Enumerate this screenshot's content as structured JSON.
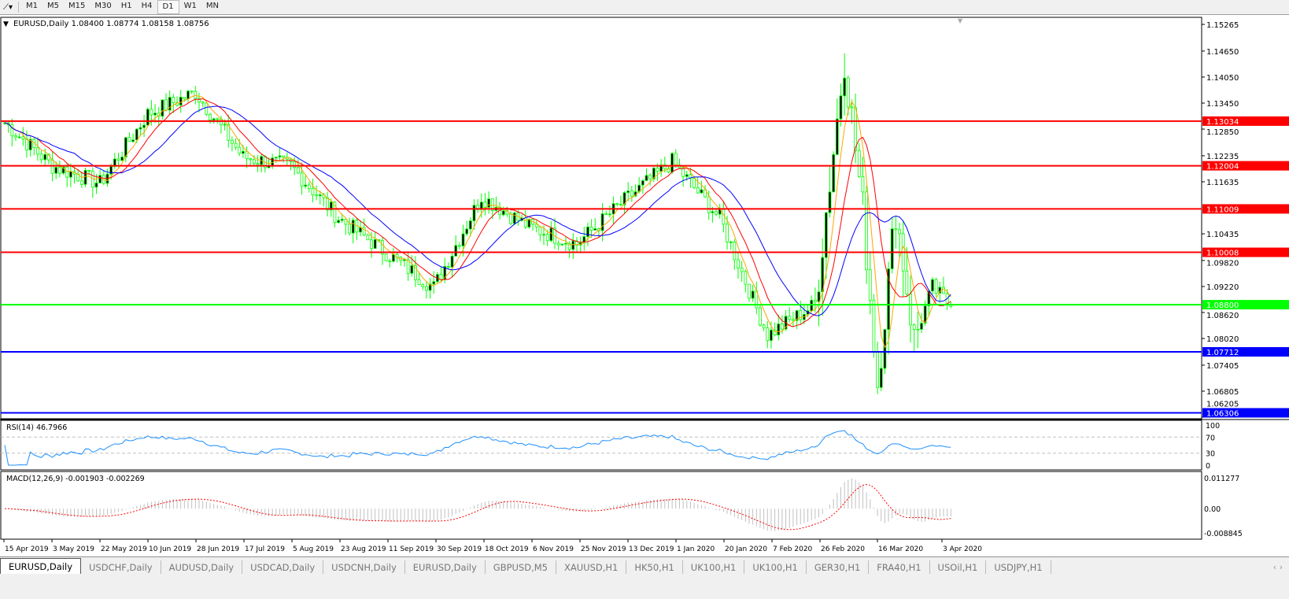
{
  "toolbar": {
    "timeframes": [
      "M1",
      "M5",
      "M15",
      "M30",
      "H1",
      "H4",
      "D1",
      "W1",
      "MN"
    ],
    "active": "D1"
  },
  "chart": {
    "header": "EURUSD,Daily  1.08400 1.08774 1.08158 1.08756",
    "price_ticks": [
      "1.15265",
      "1.14650",
      "1.14050",
      "1.13450",
      "1.12850",
      "1.12235",
      "1.11635",
      "1.10435",
      "1.09820",
      "1.09220",
      "1.08620",
      "1.08020",
      "1.07405",
      "1.06805",
      "1.06205"
    ],
    "levels": [
      {
        "label": "1.13034",
        "color": "#ff0000"
      },
      {
        "label": "1.12004",
        "color": "#ff0000"
      },
      {
        "label": "1.11009",
        "color": "#ff0000"
      },
      {
        "label": "1.10008",
        "color": "#ff0000"
      },
      {
        "label": "1.08800",
        "color": "#00ff00"
      },
      {
        "label": "1.07712",
        "color": "#0000ff"
      },
      {
        "label": "1.06306",
        "color": "#0000ff"
      }
    ],
    "rsi": {
      "label": "RSI(14) 46.7966",
      "ticks": [
        "100",
        "70",
        "30",
        "0"
      ]
    },
    "macd": {
      "label": "MACD(12,26,9) -0.001903 -0.002269",
      "ticks": [
        "0.011277",
        "0.00",
        "-0.008845"
      ]
    },
    "dates": [
      "15 Apr 2019",
      "3 May 2019",
      "22 May 2019",
      "10 Jun 2019",
      "28 Jun 2019",
      "17 Jul 2019",
      "5 Aug 2019",
      "23 Aug 2019",
      "11 Sep 2019",
      "30 Sep 2019",
      "18 Oct 2019",
      "6 Nov 2019",
      "25 Nov 2019",
      "13 Dec 2019",
      "1 Jan 2020",
      "20 Jan 2020",
      "7 Feb 2020",
      "26 Feb 2020",
      "16 Mar 2020",
      "3 Apr 2020"
    ],
    "colors": {
      "bull": "#00ff00",
      "bear": "#00ff00",
      "ma_fast": "#ffa500",
      "ma_mid": "#ff0000",
      "ma_slow": "#0000ff",
      "rsi": "#1e90ff",
      "macd_signal": "#ff0000",
      "macd_hist": "#c0c0c0"
    }
  },
  "chart_data": {
    "type": "candlestick",
    "symbol": "EURUSD",
    "timeframe": "Daily",
    "ylim": [
      1.06205,
      1.15265
    ],
    "approx_close_path": [
      [
        "15 Apr 2019",
        1.13
      ],
      [
        "3 May 2019",
        1.12
      ],
      [
        "22 May 2019",
        1.116
      ],
      [
        "10 Jun 2019",
        1.132
      ],
      [
        "28 Jun 2019",
        1.137
      ],
      [
        "17 Jul 2019",
        1.122
      ],
      [
        "5 Aug 2019",
        1.12
      ],
      [
        "23 Aug 2019",
        1.108
      ],
      [
        "11 Sep 2019",
        1.1
      ],
      [
        "30 Sep 2019",
        1.092
      ],
      [
        "18 Oct 2019",
        1.113
      ],
      [
        "6 Nov 2019",
        1.106
      ],
      [
        "25 Nov 2019",
        1.102
      ],
      [
        "13 Dec 2019",
        1.112
      ],
      [
        "1 Jan 2020",
        1.121
      ],
      [
        "20 Jan 2020",
        1.108
      ],
      [
        "7 Feb 2020",
        1.081
      ],
      [
        "26 Feb 2020",
        1.088
      ],
      [
        "9 Mar 2020",
        1.145
      ],
      [
        "16 Mar 2020",
        1.11
      ],
      [
        "20 Mar 2020",
        1.07
      ],
      [
        "27 Mar 2020",
        1.11
      ],
      [
        "3 Apr 2020",
        1.08
      ],
      [
        "10 Apr 2020",
        1.092
      ],
      [
        "17 Apr 2020",
        1.0876
      ]
    ]
  },
  "tabs": [
    "EURUSD,Daily",
    "USDCHF,Daily",
    "AUDUSD,Daily",
    "USDCAD,Daily",
    "USDCNH,Daily",
    "EURUSD,Daily",
    "GBPUSD,M5",
    "XAUUSD,H1",
    "HK50,H1",
    "UK100,H1",
    "UK100,H1",
    "GER30,H1",
    "FRA40,H1",
    "USOil,H1",
    "USDJPY,H1"
  ]
}
